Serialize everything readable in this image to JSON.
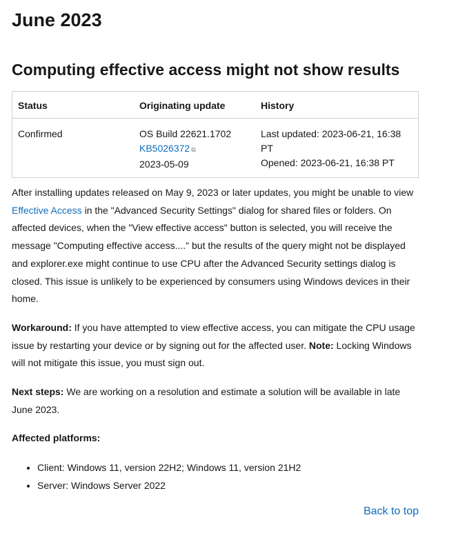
{
  "page_title": "June 2023",
  "issue": {
    "title": "Computing effective access might not show results",
    "table": {
      "headers": [
        "Status",
        "Originating update",
        "History"
      ],
      "status": "Confirmed",
      "build": "OS Build 22621.1702",
      "kb_link": "KB5026372",
      "kb_date": "2023-05-09",
      "last_updated": "Last updated: 2023-06-21, 16:38 PT",
      "opened": "Opened: 2023-06-21, 16:38 PT"
    },
    "p1_pre": "After installing updates released on May 9, 2023 or later updates, you might be unable to view ",
    "p1_link": "Effective Access",
    "p1_post": " in the \"Advanced Security Settings\" dialog for shared files or folders. On affected devices, when the \"View effective access\" button is selected, you will receive the message \"Computing effective access....\" but the results of the query might not be displayed and explorer.exe might continue to use CPU after the Advanced Security settings dialog is closed. This issue is unlikely to be experienced by consumers using Windows devices in their home.",
    "workaround_label": "Workaround:",
    "workaround_text": " If you have attempted to view effective access, you can mitigate the CPU usage issue by restarting your device or by signing out for the affected user. ",
    "note_label": "Note:",
    "note_text": " Locking Windows will not mitigate this issue, you must sign out.",
    "next_label": "Next steps:",
    "next_text": " We are working on a resolution and estimate a solution will be available in late June 2023.",
    "platforms_label": "Affected platforms:",
    "platforms": [
      "Client: Windows 11, version 22H2; Windows 11, version 21H2",
      "Server: Windows Server 2022"
    ]
  },
  "back_to_top": "Back to top",
  "link_color": "#0f6cbd"
}
